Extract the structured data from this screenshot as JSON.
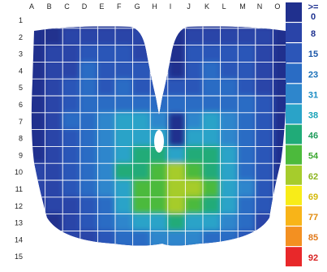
{
  "chart_data": {
    "type": "heatmap",
    "columns": [
      "A",
      "B",
      "C",
      "D",
      "E",
      "F",
      "G",
      "H",
      "I",
      "J",
      "K",
      "L",
      "M",
      "N",
      "O"
    ],
    "rows": [
      "1",
      "2",
      "3",
      "4",
      "5",
      "6",
      "7",
      "8",
      "9",
      "10",
      "11",
      "12",
      "13",
      "14",
      "15"
    ],
    "legend": {
      "first_label": ">=",
      "labels": [
        "0",
        "8",
        "15",
        "23",
        "31",
        "38",
        "46",
        "54",
        "62",
        "69",
        "77",
        "85",
        "92"
      ],
      "colors": [
        "#20308e",
        "#2a44a8",
        "#2c56b8",
        "#2a6cc4",
        "#2e86cc",
        "#2aa3c8",
        "#20ab78",
        "#4cba3c",
        "#a6cc2c",
        "#f8ec18",
        "#f8b418",
        "#f39021",
        "#e8282a"
      ],
      "label_colors": [
        "#1e3290",
        "#1e3290",
        "#1a56a8",
        "#1a70b8",
        "#1a8cc4",
        "#17a2b8",
        "#1f9b5c",
        "#3da832",
        "#8cb41e",
        "#d4b90a",
        "#e08a0a",
        "#e07818",
        "#d82222"
      ]
    },
    "values": [
      [
        null,
        3,
        4,
        5,
        4,
        6,
        5,
        6,
        null,
        6,
        5,
        4,
        6,
        5,
        null
      ],
      [
        null,
        6,
        9,
        10,
        12,
        14,
        12,
        9,
        null,
        10,
        10,
        12,
        11,
        8,
        null
      ],
      [
        null,
        8,
        12,
        22,
        15,
        18,
        14,
        10,
        null,
        16,
        20,
        18,
        22,
        10,
        null
      ],
      [
        null,
        10,
        14,
        24,
        16,
        22,
        20,
        16,
        null,
        16,
        24,
        22,
        20,
        14,
        null
      ],
      [
        null,
        10,
        18,
        26,
        20,
        25,
        22,
        20,
        18,
        20,
        26,
        24,
        22,
        14,
        null
      ],
      [
        null,
        12,
        22,
        28,
        25,
        28,
        30,
        28,
        30,
        28,
        30,
        26,
        24,
        18,
        null
      ],
      [
        null,
        14,
        24,
        30,
        34,
        40,
        38,
        36,
        null,
        36,
        38,
        34,
        28,
        20,
        null
      ],
      [
        null,
        14,
        22,
        30,
        36,
        44,
        42,
        38,
        null,
        40,
        42,
        36,
        28,
        18,
        null
      ],
      [
        null,
        12,
        20,
        30,
        34,
        44,
        48,
        46,
        44,
        48,
        46,
        38,
        30,
        16,
        null
      ],
      [
        10,
        10,
        18,
        28,
        34,
        46,
        52,
        56,
        62,
        58,
        50,
        42,
        30,
        18,
        null
      ],
      [
        8,
        8,
        16,
        26,
        32,
        44,
        56,
        60,
        64,
        62,
        54,
        44,
        32,
        20,
        null
      ],
      [
        null,
        8,
        14,
        22,
        30,
        42,
        60,
        58,
        62,
        60,
        52,
        42,
        30,
        18,
        10
      ],
      [
        null,
        6,
        12,
        18,
        26,
        34,
        40,
        44,
        46,
        44,
        40,
        34,
        24,
        12,
        null
      ],
      [
        null,
        5,
        10,
        14,
        22,
        28,
        30,
        32,
        34,
        32,
        30,
        24,
        18,
        10,
        null
      ],
      [
        null,
        null,
        8,
        12,
        16,
        20,
        22,
        24,
        24,
        22,
        20,
        16,
        12,
        null,
        null
      ]
    ]
  }
}
